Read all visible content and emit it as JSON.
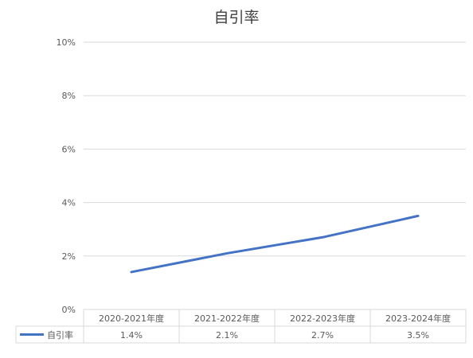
{
  "chart_data": {
    "type": "line",
    "title": "自引率",
    "categories": [
      "2020-2021年度",
      "2021-2022年度",
      "2022-2023年度",
      "2023-2024年度"
    ],
    "series": [
      {
        "name": "自引率",
        "values": [
          1.4,
          2.1,
          2.7,
          3.5
        ],
        "value_labels": [
          "1.4%",
          "2.1%",
          "2.7%",
          "3.5%"
        ],
        "color": "#4472C4"
      }
    ],
    "y_ticks": [
      "0%",
      "2%",
      "4%",
      "6%",
      "8%",
      "10%"
    ],
    "ylim": [
      0,
      10
    ],
    "grid": true,
    "legend": "data-table",
    "colors": {
      "gridline": "#d9d9d9",
      "text": "#595959",
      "title": "#404040"
    }
  }
}
